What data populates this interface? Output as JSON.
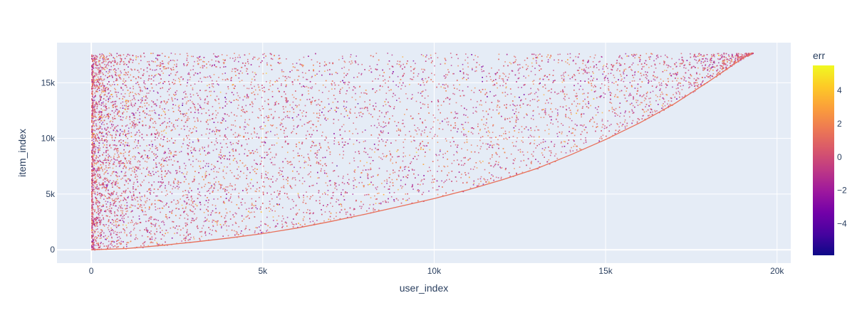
{
  "chart_data": {
    "type": "scatter",
    "title": "",
    "xlabel": "user_index",
    "ylabel": "item_index",
    "xlim": [
      -1000,
      20400
    ],
    "ylim": [
      -1200,
      18600
    ],
    "x_ticks": [
      {
        "value": 0,
        "label": "0"
      },
      {
        "value": 5000,
        "label": "5k"
      },
      {
        "value": 10000,
        "label": "10k"
      },
      {
        "value": 15000,
        "label": "15k"
      },
      {
        "value": 20000,
        "label": "20k"
      }
    ],
    "y_ticks": [
      {
        "value": 0,
        "label": "0"
      },
      {
        "value": 5000,
        "label": "5k"
      },
      {
        "value": 10000,
        "label": "10k"
      },
      {
        "value": 15000,
        "label": "15k"
      }
    ],
    "grid": true,
    "point_region": {
      "x_range": [
        0,
        19300
      ],
      "y_range": [
        0,
        17700
      ],
      "lower_boundary": [
        [
          0,
          0
        ],
        [
          1000,
          100
        ],
        [
          2000,
          380
        ],
        [
          3000,
          700
        ],
        [
          4000,
          1050
        ],
        [
          5000,
          1450
        ],
        [
          6000,
          1950
        ],
        [
          7000,
          2550
        ],
        [
          8000,
          3200
        ],
        [
          9000,
          3900
        ],
        [
          10000,
          4600
        ],
        [
          11000,
          5400
        ],
        [
          12000,
          6300
        ],
        [
          13000,
          7300
        ],
        [
          14000,
          8550
        ],
        [
          15000,
          9900
        ],
        [
          16000,
          11400
        ],
        [
          17000,
          13100
        ],
        [
          18000,
          15100
        ],
        [
          19000,
          17200
        ],
        [
          19300,
          17700
        ]
      ],
      "density_note": "dense at low user_index, sparse at high user_index"
    },
    "colorbar": {
      "title": "err",
      "range": [
        -5.9,
        5.5
      ],
      "ticks": [
        {
          "value": -4,
          "label": "−4"
        },
        {
          "value": -2,
          "label": "−2"
        },
        {
          "value": 0,
          "label": "0"
        },
        {
          "value": 2,
          "label": "2"
        },
        {
          "value": 4,
          "label": "4"
        }
      ],
      "colorscale": [
        "#0d0887",
        "#46039f",
        "#7201a8",
        "#9c179e",
        "#bd3786",
        "#d8576b",
        "#ed7953",
        "#fb9f3a",
        "#fdca26",
        "#f0f921"
      ]
    },
    "colors": {
      "plot_bg": "#e5ecf6",
      "grid": "#ffffff",
      "boundary_line": "#e8705a"
    }
  }
}
